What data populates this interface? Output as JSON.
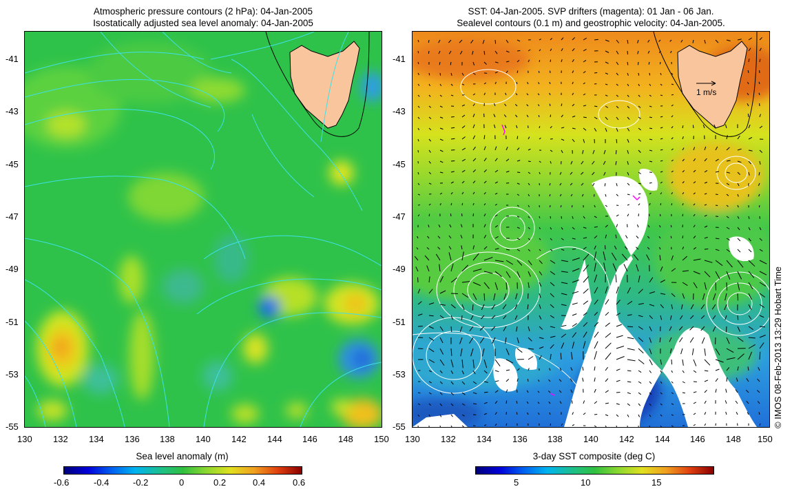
{
  "left_panel": {
    "title_line1": "Atmospheric pressure contours (2 hPa): 04-Jan-2005",
    "title_line2": "Isostatically adjusted sea level anomaly: 04-Jan-2005",
    "colorbar": {
      "title": "Sea level anomaly (m)",
      "ticks": [
        "-0.6",
        "-0.4",
        "-0.2",
        "0",
        "0.2",
        "0.4",
        "0.6"
      ]
    }
  },
  "right_panel": {
    "title_line1": "SST: 04-Jan-2005. SVP drifters (magenta): 01 Jan - 06 Jan.",
    "title_line2": "Sealevel contours (0.1 m) and geostrophic velocity: 04-Jan-2005.",
    "velocity_scale_label": "1 m/s",
    "colorbar": {
      "title": "3-day SST composite (deg C)",
      "ticks": [
        "5",
        "10",
        "15"
      ]
    }
  },
  "axes": {
    "lon_ticks": [
      "130",
      "132",
      "134",
      "136",
      "138",
      "140",
      "142",
      "144",
      "146",
      "148",
      "150"
    ],
    "lat_ticks": [
      "-41",
      "-43",
      "-45",
      "-47",
      "-49",
      "-51",
      "-53",
      "-55"
    ]
  },
  "credit": "© IMOS 08-Feb-2013 13:29 Hobart Time",
  "colors": {
    "land": "#f9c59d",
    "contour_left": "#3ee0e8",
    "contour_right": "#ffffff",
    "drifter": "#ff00ff"
  }
}
